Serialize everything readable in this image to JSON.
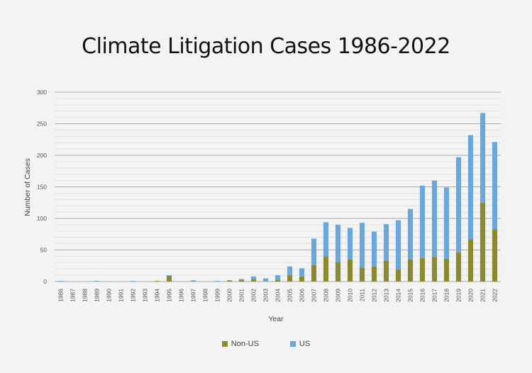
{
  "chart_data": {
    "type": "bar",
    "stacked": true,
    "title": "Climate Litigation Cases 1986-2022",
    "xlabel": "Year",
    "ylabel": "Number of Cases",
    "ylim": [
      0,
      300
    ],
    "yticks": [
      0,
      50,
      100,
      150,
      200,
      250,
      300
    ],
    "minor_gridlines_step": 10,
    "grid": true,
    "legend_position": "bottom",
    "categories": [
      "1986",
      "1987",
      "1988",
      "1989",
      "1990",
      "1991",
      "1992",
      "1993",
      "1994",
      "1995",
      "1996",
      "1997",
      "1998",
      "1999",
      "2000",
      "2001",
      "2002",
      "2003",
      "2004",
      "2005",
      "2006",
      "2007",
      "2008",
      "2009",
      "2010",
      "2011",
      "2012",
      "2013",
      "2014",
      "2015",
      "2016",
      "2017",
      "2018",
      "2019",
      "2020",
      "2021",
      "2022"
    ],
    "series": [
      {
        "name": "Non-US",
        "color": "#8c8a30",
        "values": [
          0,
          0,
          0,
          0,
          0,
          0,
          0,
          0,
          1,
          9,
          0,
          0,
          0,
          0,
          2,
          3,
          4,
          0,
          3,
          10,
          8,
          26,
          40,
          31,
          35,
          22,
          24,
          33,
          19,
          35,
          37,
          39,
          36,
          46,
          67,
          125,
          83
        ]
      },
      {
        "name": "US",
        "color": "#6aa8dc",
        "values": [
          1,
          0,
          0,
          1,
          0,
          0,
          1,
          0,
          0,
          1,
          0,
          2,
          0,
          1,
          0,
          1,
          4,
          5,
          7,
          14,
          13,
          42,
          54,
          59,
          50,
          71,
          55,
          58,
          78,
          80,
          115,
          121,
          113,
          151,
          165,
          142,
          138
        ]
      }
    ]
  },
  "legend": {
    "items": [
      {
        "label": "Non-US",
        "color": "#8c8a30"
      },
      {
        "label": "US",
        "color": "#6aa8dc"
      }
    ]
  }
}
